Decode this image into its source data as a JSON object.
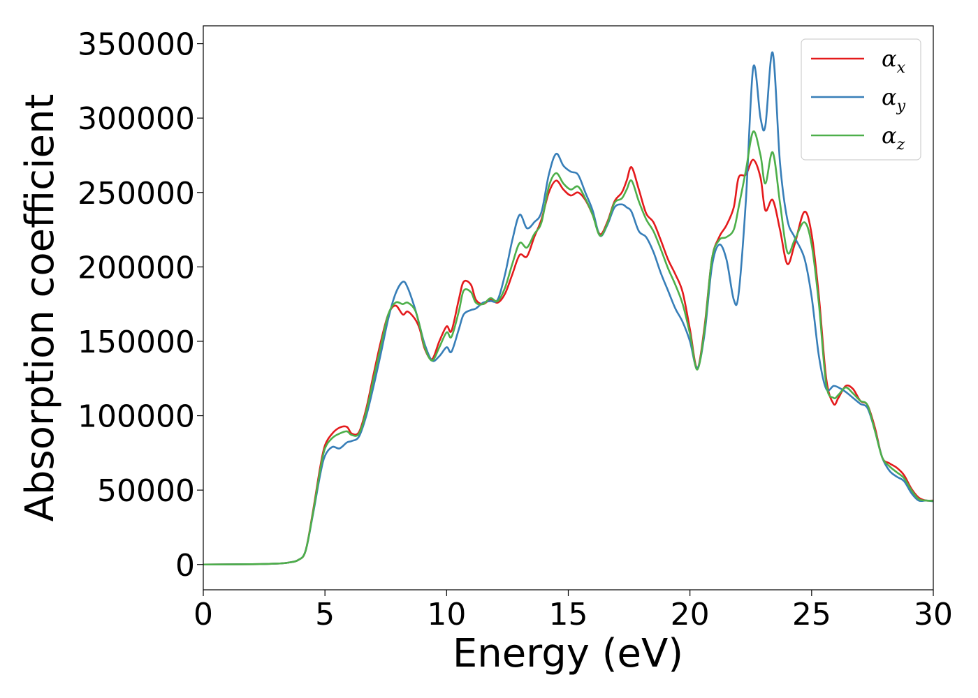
{
  "chart_data": {
    "type": "line",
    "xlabel": "Energy (eV)",
    "ylabel": "Absorption coefficient",
    "xlim": [
      0,
      30
    ],
    "ylim": [
      -17000,
      362000
    ],
    "xticks": [
      0,
      5,
      10,
      15,
      20,
      25,
      30
    ],
    "yticks": [
      0,
      50000,
      100000,
      150000,
      200000,
      250000,
      300000,
      350000
    ],
    "grid": false,
    "legend_position": "top-right",
    "series": [
      {
        "name": "αx",
        "symbol": "α",
        "subscript": "x",
        "color": "#e41a1c",
        "x": [
          0,
          2,
          3,
          3.5,
          3.9,
          4.2,
          4.5,
          4.8,
          5.0,
          5.3,
          5.6,
          5.9,
          6.1,
          6.4,
          6.7,
          7.0,
          7.3,
          7.6,
          7.9,
          8.2,
          8.4,
          8.7,
          8.9,
          9.1,
          9.4,
          9.7,
          10.0,
          10.2,
          10.5,
          10.7,
          11.0,
          11.2,
          11.5,
          11.8,
          12.1,
          12.4,
          12.7,
          13.0,
          13.3,
          13.6,
          13.9,
          14.2,
          14.5,
          14.8,
          15.1,
          15.4,
          15.7,
          16.0,
          16.3,
          16.6,
          16.9,
          17.2,
          17.4,
          17.6,
          17.9,
          18.2,
          18.5,
          18.8,
          19.1,
          19.4,
          19.7,
          20.0,
          20.3,
          20.6,
          20.9,
          21.2,
          21.5,
          21.8,
          22.0,
          22.3,
          22.6,
          22.9,
          23.1,
          23.4,
          23.7,
          24.0,
          24.3,
          24.7,
          25.0,
          25.3,
          25.6,
          25.9,
          26.1,
          26.4,
          26.7,
          27.0,
          27.3,
          27.6,
          27.9,
          28.2,
          28.5,
          28.8,
          29.1,
          29.4,
          29.7,
          30.0
        ],
        "values": [
          0,
          200,
          600,
          1300,
          3000,
          9000,
          35000,
          65000,
          80000,
          88000,
          92000,
          92500,
          88000,
          89000,
          105000,
          128000,
          150000,
          168000,
          174000,
          168000,
          170000,
          165000,
          158000,
          145000,
          138000,
          150000,
          160000,
          157000,
          178000,
          190000,
          188000,
          178000,
          175000,
          178000,
          176000,
          182000,
          195000,
          208000,
          207000,
          220000,
          232000,
          250000,
          258000,
          252000,
          248000,
          250000,
          245000,
          235000,
          222000,
          230000,
          244000,
          250000,
          258000,
          267000,
          252000,
          236000,
          230000,
          218000,
          205000,
          195000,
          183000,
          158000,
          132000,
          160000,
          205000,
          220000,
          228000,
          240000,
          260000,
          262000,
          272000,
          260000,
          238000,
          245000,
          225000,
          202000,
          215000,
          237000,
          222000,
          180000,
          125000,
          108000,
          112000,
          120000,
          118000,
          110000,
          107000,
          92000,
          72000,
          68000,
          65000,
          60000,
          51000,
          45000,
          43000,
          43000
        ]
      },
      {
        "name": "αy",
        "symbol": "α",
        "subscript": "y",
        "color": "#377eb8",
        "x": [
          0,
          2,
          3,
          3.5,
          3.9,
          4.2,
          4.5,
          4.8,
          5.0,
          5.3,
          5.6,
          5.9,
          6.1,
          6.4,
          6.7,
          7.0,
          7.3,
          7.6,
          7.9,
          8.2,
          8.4,
          8.7,
          8.9,
          9.1,
          9.4,
          9.7,
          10.0,
          10.2,
          10.5,
          10.7,
          11.0,
          11.2,
          11.5,
          11.8,
          12.1,
          12.4,
          12.7,
          13.0,
          13.3,
          13.6,
          13.9,
          14.2,
          14.5,
          14.8,
          15.1,
          15.4,
          15.7,
          16.0,
          16.3,
          16.6,
          16.9,
          17.2,
          17.4,
          17.6,
          17.9,
          18.2,
          18.5,
          18.8,
          19.1,
          19.4,
          19.7,
          20.0,
          20.3,
          20.6,
          20.9,
          21.2,
          21.5,
          21.8,
          22.0,
          22.3,
          22.6,
          22.9,
          23.1,
          23.4,
          23.7,
          24.0,
          24.3,
          24.7,
          25.0,
          25.3,
          25.6,
          25.9,
          26.1,
          26.4,
          26.7,
          27.0,
          27.3,
          27.6,
          27.9,
          28.2,
          28.5,
          28.8,
          29.1,
          29.4,
          29.7,
          30.0
        ],
        "values": [
          0,
          200,
          600,
          1300,
          3000,
          9000,
          33000,
          60000,
          73000,
          79000,
          78000,
          82000,
          83000,
          86000,
          100000,
          120000,
          142000,
          165000,
          182000,
          190000,
          186000,
          172000,
          160000,
          148000,
          137000,
          140000,
          146000,
          143000,
          158000,
          168000,
          171000,
          172000,
          176000,
          177000,
          178000,
          195000,
          218000,
          235000,
          226000,
          230000,
          237000,
          262000,
          276000,
          268000,
          264000,
          262000,
          250000,
          238000,
          221000,
          228000,
          240000,
          242000,
          240000,
          237000,
          224000,
          220000,
          210000,
          196000,
          184000,
          172000,
          163000,
          150000,
          132000,
          155000,
          200000,
          215000,
          205000,
          178000,
          182000,
          245000,
          334000,
          300000,
          295000,
          344000,
          270000,
          232000,
          220000,
          206000,
          180000,
          140000,
          118000,
          120000,
          119000,
          116000,
          112000,
          108000,
          105000,
          90000,
          72000,
          63000,
          59000,
          56000,
          48000,
          43000,
          43000,
          42500
        ]
      },
      {
        "name": "αz",
        "symbol": "α",
        "subscript": "z",
        "color": "#4daf4a",
        "x": [
          0,
          2,
          3,
          3.5,
          3.9,
          4.2,
          4.5,
          4.8,
          5.0,
          5.3,
          5.6,
          5.9,
          6.1,
          6.4,
          6.7,
          7.0,
          7.3,
          7.6,
          7.9,
          8.2,
          8.4,
          8.7,
          8.9,
          9.1,
          9.4,
          9.7,
          10.0,
          10.2,
          10.5,
          10.7,
          11.0,
          11.2,
          11.5,
          11.8,
          12.1,
          12.4,
          12.7,
          13.0,
          13.3,
          13.6,
          13.9,
          14.2,
          14.5,
          14.8,
          15.1,
          15.4,
          15.7,
          16.0,
          16.3,
          16.6,
          16.9,
          17.2,
          17.4,
          17.6,
          17.9,
          18.2,
          18.5,
          18.8,
          19.1,
          19.4,
          19.7,
          20.0,
          20.3,
          20.6,
          20.9,
          21.2,
          21.5,
          21.8,
          22.0,
          22.3,
          22.6,
          22.9,
          23.1,
          23.4,
          23.7,
          24.0,
          24.3,
          24.7,
          25.0,
          25.3,
          25.6,
          25.9,
          26.1,
          26.4,
          26.7,
          27.0,
          27.3,
          27.6,
          27.9,
          28.2,
          28.5,
          28.8,
          29.1,
          29.4,
          29.7,
          30.0
        ],
        "values": [
          0,
          200,
          600,
          1300,
          3000,
          9000,
          34000,
          63000,
          78000,
          85000,
          88000,
          89500,
          87000,
          88000,
          103000,
          125000,
          147000,
          168000,
          176000,
          175000,
          176000,
          171000,
          160000,
          146000,
          137000,
          146000,
          156000,
          153000,
          170000,
          184000,
          183000,
          176000,
          175000,
          179000,
          177000,
          186000,
          202000,
          216000,
          213000,
          222000,
          230000,
          254000,
          263000,
          256000,
          252000,
          254000,
          246000,
          235000,
          221000,
          229000,
          243000,
          246000,
          252000,
          258000,
          244000,
          232000,
          224000,
          212000,
          199000,
          188000,
          175000,
          155000,
          131000,
          158000,
          205000,
          218000,
          220000,
          225000,
          240000,
          265000,
          291000,
          275000,
          256000,
          277000,
          243000,
          210000,
          218000,
          230000,
          215000,
          175000,
          121000,
          112000,
          114000,
          119000,
          115000,
          110000,
          107000,
          90000,
          72000,
          66000,
          62000,
          58000,
          50000,
          44000,
          43000,
          42800
        ]
      }
    ]
  }
}
